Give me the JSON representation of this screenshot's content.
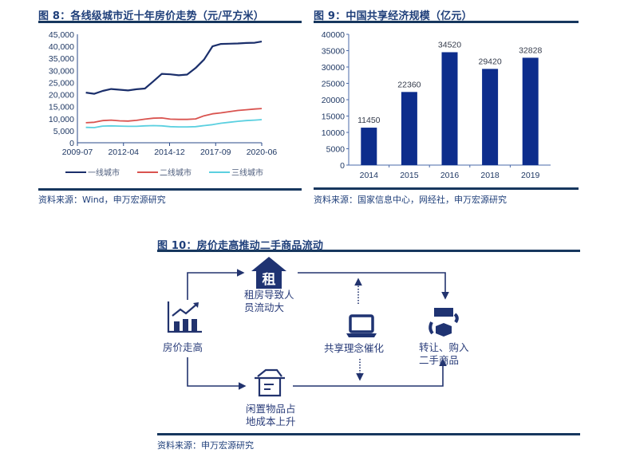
{
  "figures": {
    "fig8": {
      "title": "图 8：各线级城市近十年房价走势（元/平方米）",
      "source": "资料来源：Wind，申万宏源研究",
      "legend": [
        "一线城市",
        "二线城市",
        "三线城市"
      ]
    },
    "fig9": {
      "title": "图 9：中国共享经济规模（亿元）",
      "source": "资料来源：国家信息中心，网经社，申万宏源研究"
    },
    "fig10": {
      "title": "图 10：房价走高推动二手商品流动",
      "source": "资料来源：申万宏源研究",
      "nodes": {
        "start": "房价走高",
        "rent_line1": "租房导致人",
        "rent_line2": "员流动大",
        "rent_icon_char": "租",
        "share": "共享理念催化",
        "idle_line1": "闲置物品占",
        "idle_line2": "地成本上升",
        "trade_line1": "转让、购入",
        "trade_line2": "二手商品"
      }
    }
  },
  "colors": {
    "title": "#1f3f7a",
    "rule": "#17375e",
    "tier1": "#1b2f6b",
    "tier2": "#d9534f",
    "tier3": "#5bd0e0",
    "bar": "#0d2d8c",
    "diagram": "#22336e"
  },
  "chart_data": [
    {
      "type": "line",
      "title": "各线级城市近十年房价走势（元/平方米）",
      "xlabel": "",
      "ylabel": "",
      "ylim": [
        0,
        45000
      ],
      "yticks": [
        "0",
        "5,000",
        "10,000",
        "15,000",
        "20,000",
        "25,000",
        "30,000",
        "35,000",
        "40,000",
        "45,000"
      ],
      "xticks": [
        "2009-07",
        "2012-04",
        "2014-12",
        "2017-09",
        "2020-06"
      ],
      "legend_position": "bottom",
      "grid": false,
      "x": [
        "2010-01",
        "2010-07",
        "2011-01",
        "2011-07",
        "2012-01",
        "2012-07",
        "2013-01",
        "2013-07",
        "2014-01",
        "2014-07",
        "2015-01",
        "2015-07",
        "2016-01",
        "2016-07",
        "2017-01",
        "2017-07",
        "2018-01",
        "2018-07",
        "2019-01",
        "2019-07",
        "2020-01",
        "2020-06"
      ],
      "series": [
        {
          "name": "一线城市",
          "values": [
            20800,
            20300,
            21500,
            22300,
            22000,
            21700,
            22200,
            22500,
            25500,
            28600,
            28400,
            28000,
            28300,
            31000,
            34500,
            40000,
            41000,
            41100,
            41200,
            41400,
            41500,
            42000
          ]
        },
        {
          "name": "二线城市",
          "values": [
            8300,
            8500,
            9200,
            9400,
            9100,
            9000,
            9300,
            9800,
            10200,
            10300,
            9800,
            9700,
            9700,
            9900,
            11200,
            12000,
            12400,
            12900,
            13400,
            13700,
            14000,
            14200
          ]
        },
        {
          "name": "三线城市",
          "values": [
            6400,
            6300,
            6900,
            7000,
            6900,
            6800,
            6800,
            7000,
            7100,
            7000,
            6700,
            6600,
            6600,
            6700,
            7100,
            7500,
            8100,
            8500,
            8900,
            9200,
            9400,
            9600
          ]
        }
      ]
    },
    {
      "type": "bar",
      "title": "中国共享经济规模（亿元）",
      "xlabel": "",
      "ylabel": "",
      "ylim": [
        0,
        40000
      ],
      "yticks": [
        "0",
        "5000",
        "10000",
        "15000",
        "20000",
        "25000",
        "30000",
        "35000",
        "40000"
      ],
      "categories": [
        "2014",
        "2015",
        "2016",
        "2018",
        "2019"
      ],
      "values": [
        11450,
        22360,
        34520,
        29420,
        32828
      ],
      "data_labels": [
        "11450",
        "22360",
        "34520",
        "29420",
        "32828"
      ],
      "grid": false
    }
  ]
}
